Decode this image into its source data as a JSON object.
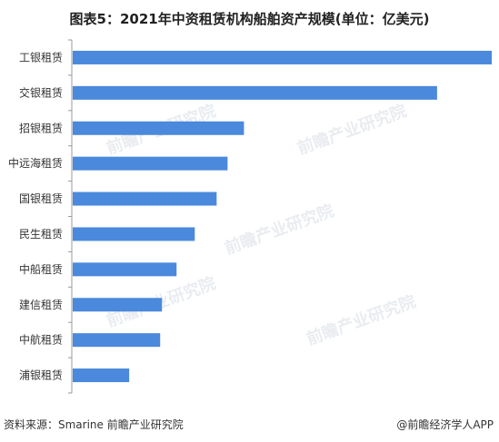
{
  "title": "图表5：2021年中资租赁机构船舶资产规模(单位：亿美元)",
  "source": "资料来源：Smarine 前瞻产业研究院",
  "credit": "@前瞻经济学人APP",
  "watermark": "前瞻产业研究院",
  "colors": {
    "bar": "#4a89dc",
    "axis": "#9a9a9a"
  },
  "chart_data": {
    "type": "bar",
    "orientation": "horizontal",
    "title": "图表5：2021年中资租赁机构船舶资产规模(单位：亿美元)",
    "categories": [
      "工银租赁",
      "交银租赁",
      "招银租赁",
      "中远海租赁",
      "国银租赁",
      "民生租赁",
      "中船租赁",
      "建信租赁",
      "中航租赁",
      "浦银租赁"
    ],
    "values": [
      115,
      100,
      47,
      42.5,
      39.5,
      33.5,
      28.5,
      24.5,
      24,
      15.5
    ],
    "xlim": [
      0,
      115
    ],
    "grid": false,
    "legend": "none"
  }
}
